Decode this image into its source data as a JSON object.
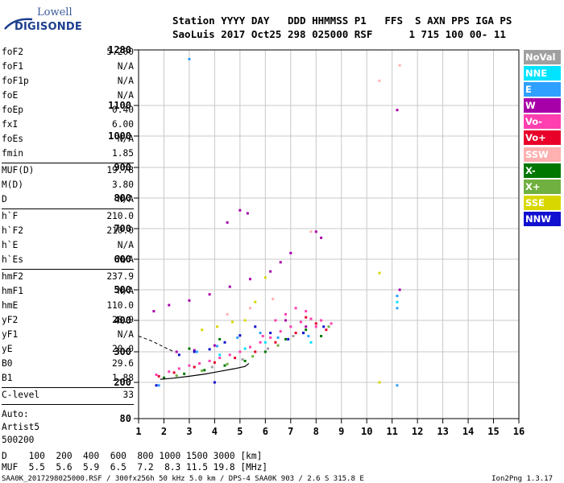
{
  "logo": {
    "top": "Lowell",
    "bottom": "DIGISONDE"
  },
  "header": {
    "line1": "Station YYYY DAY   DDD HHMMSS P1   FFS  S AXN PPS IGA PS",
    "line2": "SaoLuis 2017 Oct25 298 025000 RSF      1 715 100 00- 11"
  },
  "params": {
    "group1": [
      {
        "label": "foF2",
        "value": "5.200"
      },
      {
        "label": "foF1",
        "value": "N/A"
      },
      {
        "label": "foF1p",
        "value": "N/A"
      },
      {
        "label": "foE",
        "value": "N/A"
      },
      {
        "label": "foEp",
        "value": "0.40"
      },
      {
        "label": "fxI",
        "value": "6.00"
      },
      {
        "label": "foEs",
        "value": "N/A"
      },
      {
        "label": "fmin",
        "value": "1.85"
      }
    ],
    "group2": [
      {
        "label": "MUF(D)",
        "value": "19.78"
      },
      {
        "label": "M(D)",
        "value": "3.80"
      },
      {
        "label": "D",
        "value": "N/A"
      }
    ],
    "group3": [
      {
        "label": "h`F",
        "value": "210.0"
      },
      {
        "label": "h`F2",
        "value": "210.0"
      },
      {
        "label": "h`E",
        "value": "N/A"
      },
      {
        "label": "h`Es",
        "value": "N/A"
      }
    ],
    "group4": [
      {
        "label": "hmF2",
        "value": "237.9"
      },
      {
        "label": "hmF1",
        "value": "N/A"
      },
      {
        "label": "hmE",
        "value": "110.0"
      },
      {
        "label": "yF2",
        "value": "28.9"
      },
      {
        "label": "yF1",
        "value": "N/A"
      },
      {
        "label": "yE",
        "value": "20.0"
      },
      {
        "label": "B0",
        "value": "29.6"
      },
      {
        "label": "B1",
        "value": "1.88"
      }
    ],
    "group5": [
      {
        "label": "C-level",
        "value": "33"
      }
    ],
    "auto": [
      "Auto:",
      "Artist5",
      "500200"
    ]
  },
  "muf_table": {
    "line1": "D    100  200  400  600  800 1000 1500 3000 [km]",
    "line2": "MUF  5.5  5.6  5.9  6.5  7.2  8.3 11.5 19.8 [MHz]"
  },
  "footer": {
    "left": "SAA0K_2017298025000.RSF / 300fx256h 50 kHz 5.0 km / DPS-4 SAA0K 903 / 2.6 S 315.8 E",
    "right": "Ion2Png 1.3.17"
  },
  "legend": [
    {
      "label": "NoVal",
      "color": "#a0a0a0"
    },
    {
      "label": "NNE",
      "color": "#00e4ff"
    },
    {
      "label": "E",
      "color": "#2fa0ff"
    },
    {
      "label": "W",
      "color": "#a800a8"
    },
    {
      "label": "Vo-",
      "color": "#ff3fb0"
    },
    {
      "label": "Vo+",
      "color": "#e8002a"
    },
    {
      "label": "SSW",
      "color": "#ffb0b0"
    },
    {
      "label": "X-",
      "color": "#007800"
    },
    {
      "label": "X+",
      "color": "#70b040"
    },
    {
      "label": "SSE",
      "color": "#d8d800"
    },
    {
      "label": "NNW",
      "color": "#1010d0"
    }
  ],
  "chart_data": {
    "type": "scatter",
    "xlim": [
      1,
      16
    ],
    "ylim": [
      80,
      1280
    ],
    "x_ticks": [
      1,
      2,
      3,
      4,
      5,
      6,
      7,
      8,
      9,
      10,
      11,
      12,
      13,
      14,
      15,
      16
    ],
    "y_ticks": [
      80,
      200,
      300,
      400,
      500,
      600,
      700,
      800,
      900,
      1000,
      1100,
      1280
    ],
    "grid": true,
    "legend_placement": "right",
    "series": [
      {
        "name": "Vo-",
        "color": "#ff3fb0",
        "points": [
          [
            1.7,
            225
          ],
          [
            2.2,
            235
          ],
          [
            2.6,
            245
          ],
          [
            3.0,
            255
          ],
          [
            3.4,
            262
          ],
          [
            3.8,
            270
          ],
          [
            4.2,
            280
          ],
          [
            4.6,
            290
          ],
          [
            5.0,
            300
          ],
          [
            5.4,
            315
          ],
          [
            5.8,
            330
          ],
          [
            6.2,
            345
          ],
          [
            6.6,
            365
          ],
          [
            7.0,
            380
          ],
          [
            7.4,
            395
          ],
          [
            7.8,
            405
          ],
          [
            8.2,
            400
          ],
          [
            8.6,
            390
          ],
          [
            6.8,
            420
          ],
          [
            7.2,
            440
          ],
          [
            7.6,
            430
          ],
          [
            8.0,
            380
          ],
          [
            6.4,
            400
          ],
          [
            5.9,
            350
          ]
        ]
      },
      {
        "name": "Vo+",
        "color": "#e8002a",
        "points": [
          [
            1.8,
            220
          ],
          [
            2.4,
            232
          ],
          [
            3.2,
            250
          ],
          [
            4.0,
            265
          ],
          [
            4.8,
            280
          ],
          [
            5.6,
            300
          ],
          [
            6.4,
            330
          ],
          [
            7.2,
            360
          ],
          [
            8.0,
            390
          ],
          [
            8.4,
            370
          ],
          [
            7.6,
            410
          ]
        ]
      },
      {
        "name": "X-",
        "color": "#007800",
        "points": [
          [
            2.0,
            215
          ],
          [
            2.8,
            228
          ],
          [
            3.6,
            240
          ],
          [
            4.4,
            255
          ],
          [
            5.2,
            270
          ],
          [
            6.0,
            300
          ],
          [
            6.8,
            340
          ],
          [
            7.6,
            370
          ],
          [
            8.2,
            350
          ],
          [
            3.0,
            310
          ],
          [
            4.2,
            340
          ]
        ]
      },
      {
        "name": "X+",
        "color": "#70b040",
        "points": [
          [
            2.5,
            222
          ],
          [
            3.5,
            238
          ],
          [
            4.5,
            260
          ],
          [
            5.5,
            285
          ],
          [
            6.5,
            320
          ],
          [
            7.5,
            360
          ],
          [
            8.5,
            380
          ]
        ]
      },
      {
        "name": "W",
        "color": "#a800a8",
        "points": [
          [
            1.6,
            430
          ],
          [
            2.2,
            450
          ],
          [
            3.0,
            465
          ],
          [
            3.8,
            485
          ],
          [
            4.6,
            510
          ],
          [
            5.4,
            535
          ],
          [
            6.2,
            560
          ],
          [
            6.6,
            590
          ],
          [
            7.0,
            620
          ],
          [
            8.0,
            690
          ],
          [
            8.2,
            670
          ],
          [
            4.5,
            720
          ],
          [
            5.0,
            760
          ],
          [
            5.3,
            750
          ],
          [
            2.5,
            300
          ],
          [
            3.2,
            305
          ],
          [
            4.0,
            320
          ],
          [
            6.8,
            400
          ],
          [
            7.6,
            380
          ],
          [
            11.2,
            1085
          ],
          [
            11.3,
            500
          ]
        ]
      },
      {
        "name": "NNW",
        "color": "#1010d0",
        "points": [
          [
            2.6,
            290
          ],
          [
            3.2,
            300
          ],
          [
            3.8,
            308
          ],
          [
            4.4,
            330
          ],
          [
            5.0,
            352
          ],
          [
            5.6,
            380
          ],
          [
            6.2,
            360
          ],
          [
            6.9,
            340
          ],
          [
            7.5,
            360
          ],
          [
            8.3,
            380
          ],
          [
            1.7,
            190
          ],
          [
            4.0,
            200
          ]
        ]
      },
      {
        "name": "E",
        "color": "#2fa0ff",
        "points": [
          [
            3.3,
            300
          ],
          [
            4.1,
            318
          ],
          [
            4.9,
            345
          ],
          [
            5.8,
            360
          ],
          [
            6.5,
            345
          ],
          [
            7.7,
            350
          ],
          [
            1.8,
            190
          ],
          [
            11.2,
            190
          ],
          [
            11.2,
            440
          ],
          [
            3.0,
            1250
          ],
          [
            11.2,
            480
          ]
        ]
      },
      {
        "name": "NNE",
        "color": "#00e4ff",
        "points": [
          [
            4.2,
            290
          ],
          [
            5.2,
            310
          ],
          [
            6.0,
            330
          ],
          [
            7.8,
            330
          ],
          [
            11.2,
            460
          ]
        ]
      },
      {
        "name": "SSE",
        "color": "#d8d800",
        "points": [
          [
            3.5,
            370
          ],
          [
            4.1,
            380
          ],
          [
            4.7,
            395
          ],
          [
            5.2,
            400
          ],
          [
            5.6,
            460
          ],
          [
            6.0,
            540
          ],
          [
            10.5,
            555
          ],
          [
            10.5,
            200
          ]
        ]
      },
      {
        "name": "SSW",
        "color": "#ffb0b0",
        "points": [
          [
            4.5,
            420
          ],
          [
            5.4,
            440
          ],
          [
            6.3,
            470
          ],
          [
            7.8,
            690
          ],
          [
            10.5,
            1180
          ],
          [
            11.3,
            1230
          ]
        ]
      },
      {
        "name": "NoVal",
        "color": "#a0a0a0",
        "points": [
          [
            3.9,
            250
          ],
          [
            5.1,
            275
          ],
          [
            6.1,
            310
          ],
          [
            7.1,
            350
          ]
        ]
      }
    ],
    "trace": {
      "name": "profile",
      "x": [
        1.85,
        2.4,
        3.0,
        3.6,
        4.2,
        4.8,
        5.2,
        5.35
      ],
      "y": [
        210,
        214,
        220,
        227,
        236,
        245,
        252,
        262
      ]
    },
    "dashed_trace": {
      "name": "extrapolation",
      "x": [
        1.0,
        1.5,
        2.0,
        2.4
      ],
      "y": [
        350,
        335,
        315,
        300
      ]
    }
  }
}
